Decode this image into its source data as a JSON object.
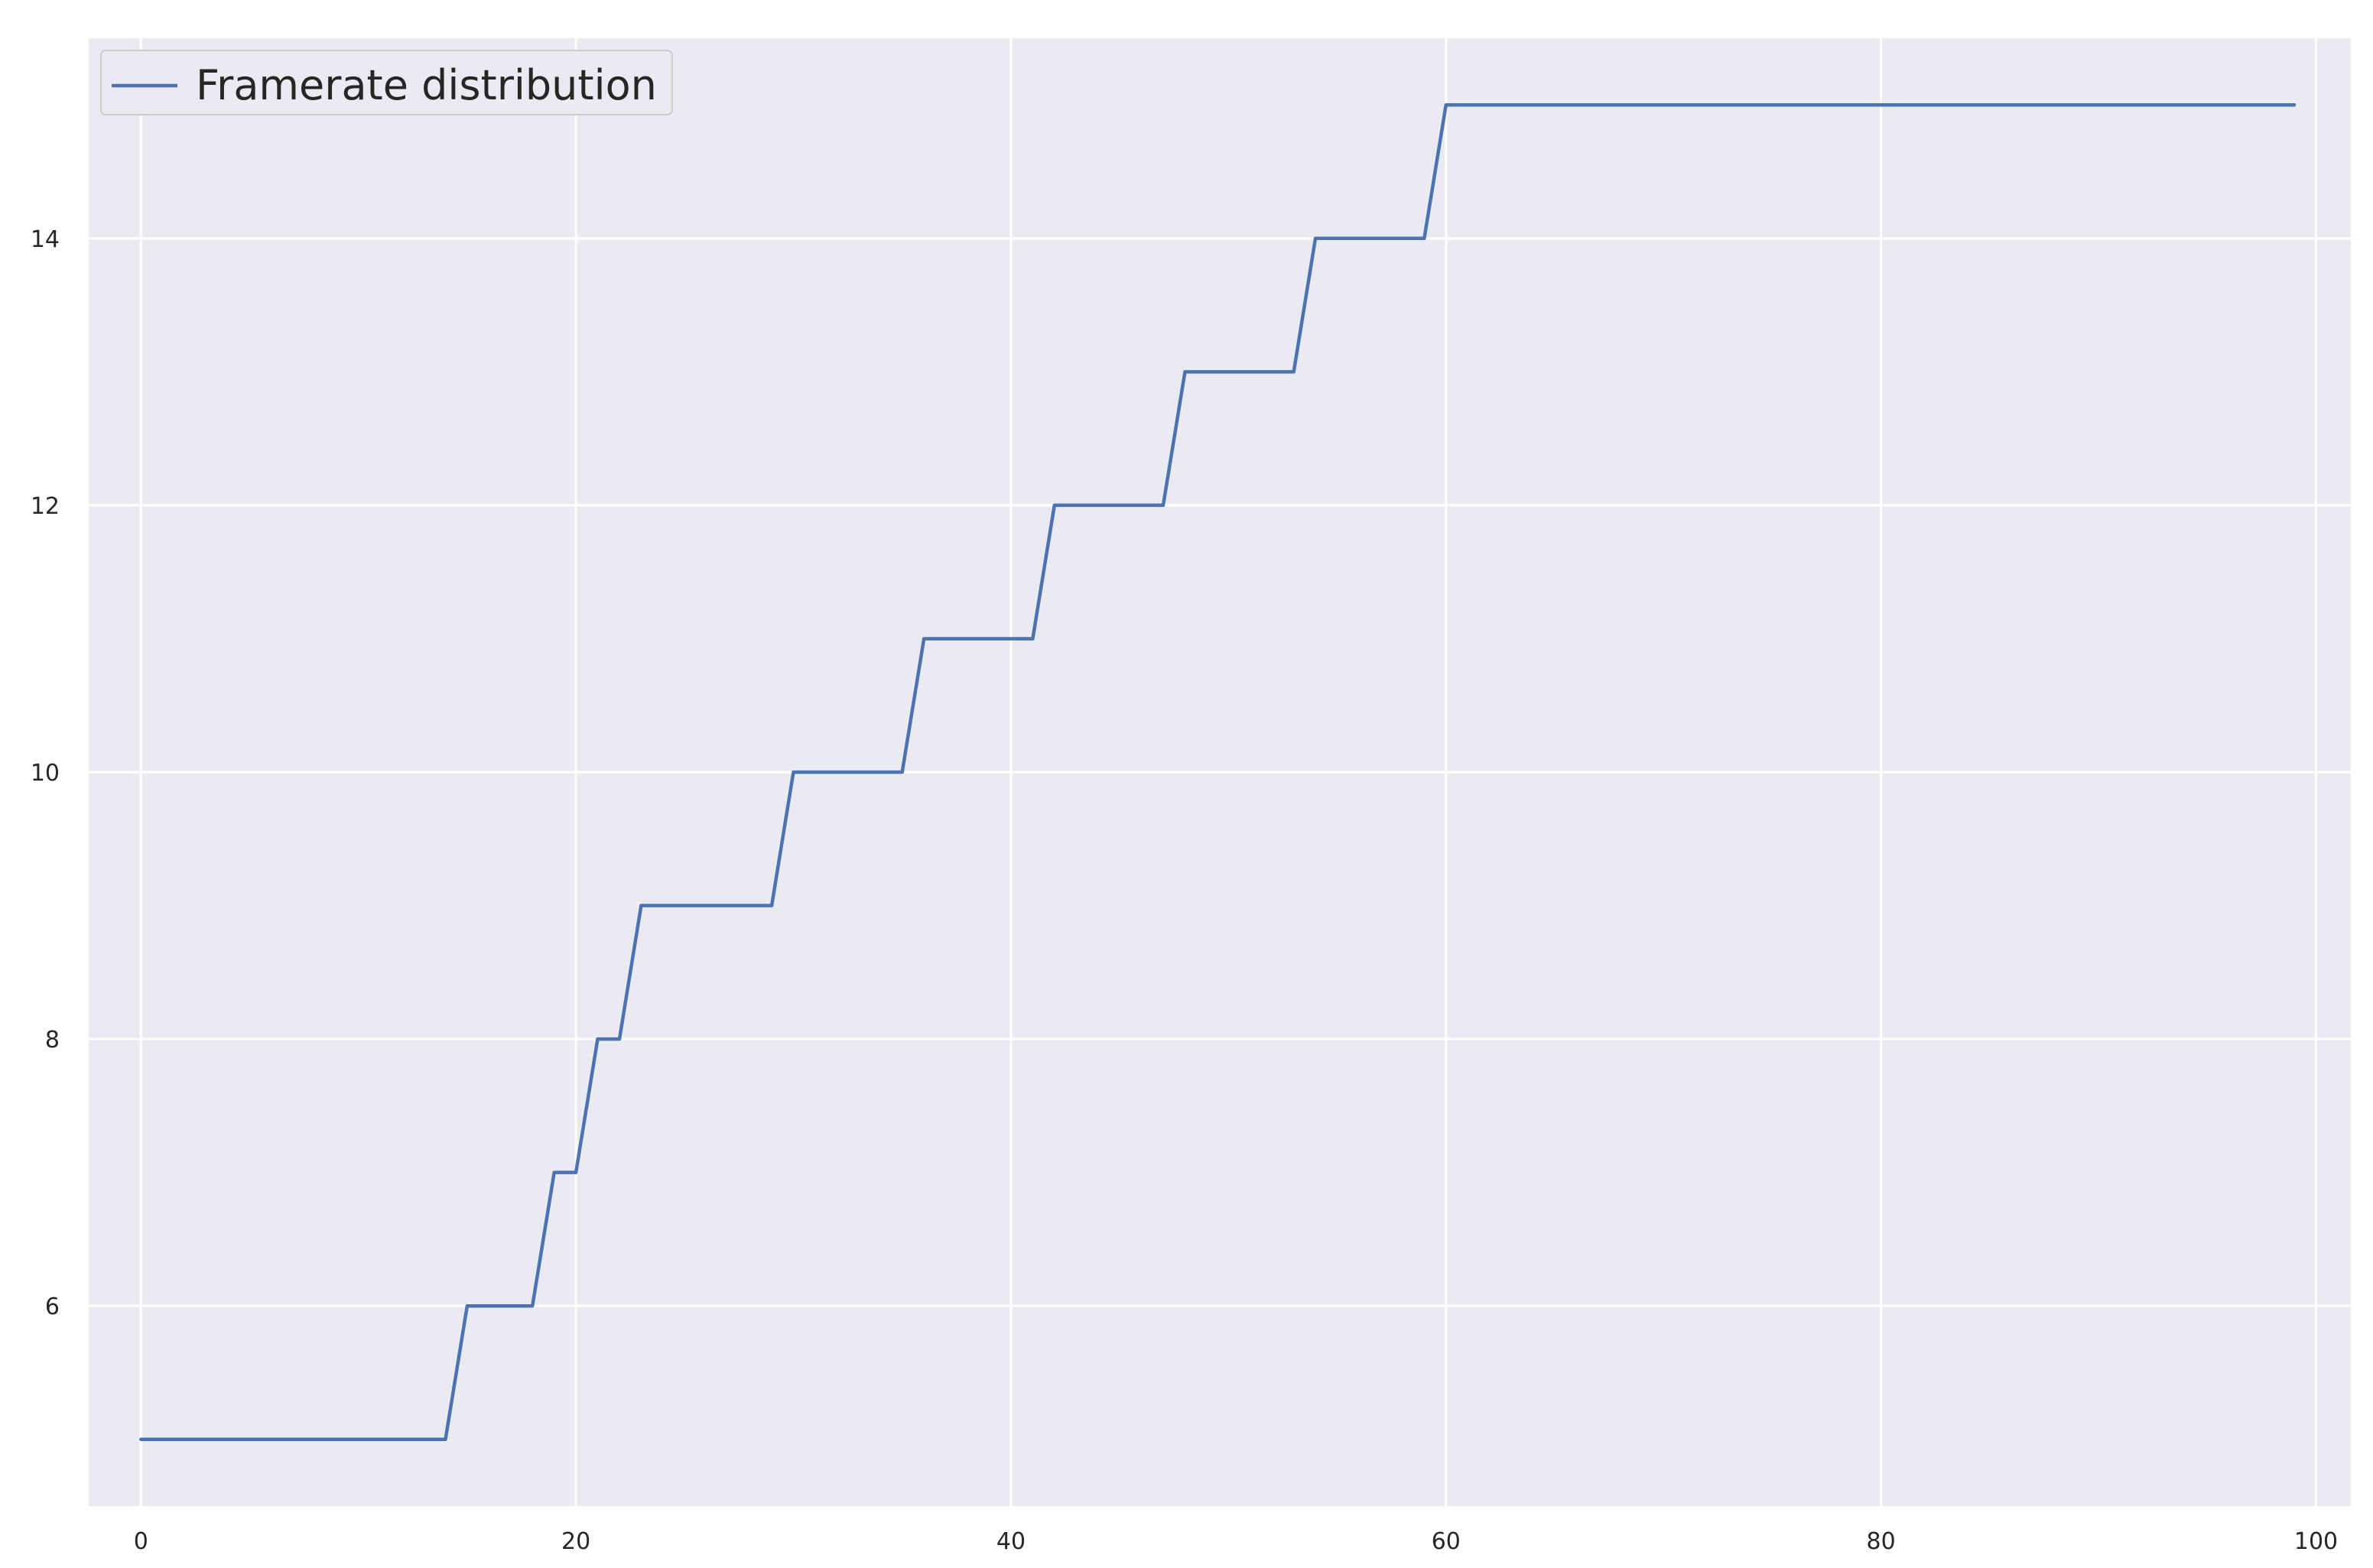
{
  "chart_data": {
    "type": "line",
    "title": "",
    "xlabel": "",
    "ylabel": "",
    "xlim": [
      -2.4,
      101.6
    ],
    "ylim": [
      4.5,
      15.5
    ],
    "x_ticks": [
      0,
      20,
      40,
      60,
      80,
      100
    ],
    "y_ticks": [
      6,
      8,
      10,
      12,
      14
    ],
    "grid": true,
    "legend": "top-left",
    "background_color": "#eaeaf2",
    "grid_color": "#ffffff",
    "series": [
      {
        "name": "Framerate distribution",
        "color": "#4c72b0",
        "x": [
          0,
          1,
          2,
          3,
          4,
          5,
          6,
          7,
          8,
          9,
          10,
          11,
          12,
          13,
          14,
          15,
          16,
          17,
          18,
          19,
          20,
          21,
          22,
          23,
          24,
          25,
          26,
          27,
          28,
          29,
          30,
          31,
          32,
          33,
          34,
          35,
          36,
          37,
          38,
          39,
          40,
          41,
          42,
          43,
          44,
          45,
          46,
          47,
          48,
          49,
          50,
          51,
          52,
          53,
          54,
          55,
          56,
          57,
          58,
          59,
          60,
          61,
          62,
          63,
          64,
          65,
          66,
          67,
          68,
          69,
          70,
          71,
          72,
          73,
          74,
          75,
          76,
          77,
          78,
          79,
          80,
          81,
          82,
          83,
          84,
          85,
          86,
          87,
          88,
          89,
          90,
          91,
          92,
          93,
          94,
          95,
          96,
          97,
          98,
          99
        ],
        "values": [
          5,
          5,
          5,
          5,
          5,
          5,
          5,
          5,
          5,
          5,
          5,
          5,
          5,
          5,
          5,
          6,
          6,
          6,
          6,
          7,
          7,
          8,
          8,
          9,
          9,
          9,
          9,
          9,
          9,
          9,
          10,
          10,
          10,
          10,
          10,
          10,
          11,
          11,
          11,
          11,
          11,
          11,
          12,
          12,
          12,
          12,
          12,
          12,
          13,
          13,
          13,
          13,
          13,
          13,
          14,
          14,
          14,
          14,
          14,
          14,
          15,
          15,
          15,
          15,
          15,
          15,
          15,
          15,
          15,
          15,
          15,
          15,
          15,
          15,
          15,
          15,
          15,
          15,
          15,
          15,
          15,
          15,
          15,
          15,
          15,
          15,
          15,
          15,
          15,
          15,
          15,
          15,
          15,
          15,
          15,
          15,
          15,
          15,
          15,
          15
        ]
      }
    ]
  }
}
